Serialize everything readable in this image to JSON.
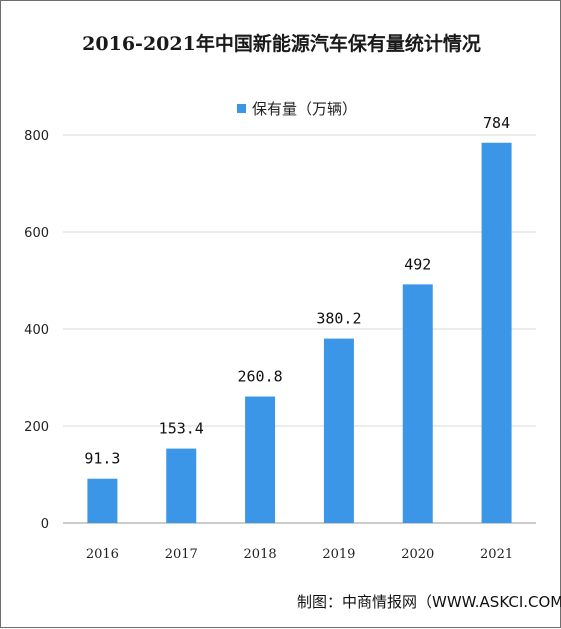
{
  "chart_data": {
    "type": "bar",
    "title": "2016-2021年中国新能源汽车保有量统计情况",
    "categories": [
      "2016",
      "2017",
      "2018",
      "2019",
      "2020",
      "2021"
    ],
    "series": [
      {
        "name": "保有量（万辆）",
        "values": [
          91.3,
          153.4,
          260.8,
          380.2,
          492,
          784
        ]
      }
    ],
    "data_labels": [
      "91.3",
      "153.4",
      "260.8",
      "380.2",
      "492",
      "784"
    ],
    "y_ticks": [
      "0",
      "200",
      "400",
      "600",
      "800"
    ],
    "ylim": [
      0,
      800
    ],
    "grid": true,
    "legend_position": "top-center",
    "bar_color": "#3b96e8",
    "source": "制图：中商情报网（WWW.ASKCI.COM）"
  }
}
